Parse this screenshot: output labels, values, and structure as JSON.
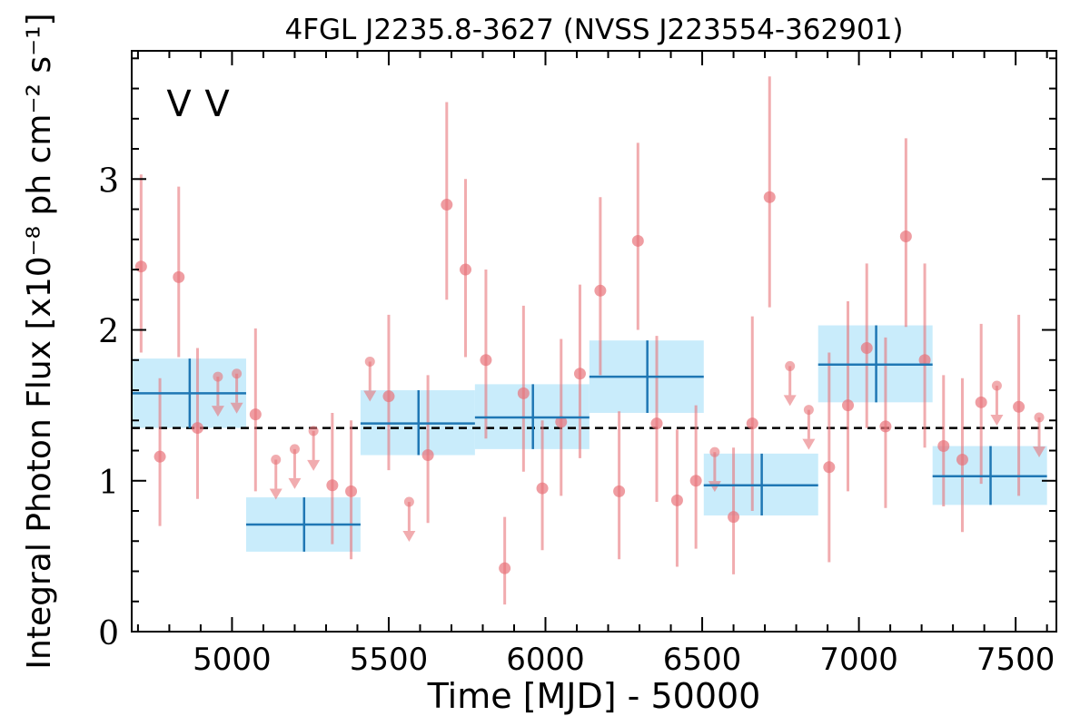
{
  "chart_data": {
    "type": "scatter",
    "title": "4FGL J2235.8-3627 (NVSS J223554-362901)",
    "xlabel": "Time [MJD] - 50000",
    "ylabel": "Integral Photon Flux [x10⁻⁸ ph cm⁻² s⁻¹]",
    "variability_flags": [
      "V",
      "V"
    ],
    "xlim": [
      4680,
      7630
    ],
    "ylim": [
      0,
      3.85
    ],
    "x_ticks": [
      5000,
      5500,
      6000,
      6500,
      7000,
      7500
    ],
    "y_ticks": [
      0,
      1,
      2,
      3
    ],
    "mean_flux": 1.35,
    "colors": {
      "short_bins": "#e8747a",
      "long_bins": "#1f77b4",
      "long_bins_band": "#c9ecfb",
      "flag_blue": "#1f77b4",
      "flag_red": "#d62728"
    },
    "series": [
      {
        "points": [
          {
            "x": 4710,
            "y": 2.42,
            "lo": 1.85,
            "hi": 3.03
          },
          {
            "x": 4770,
            "y": 1.16,
            "lo": 0.7,
            "hi": 1.68
          },
          {
            "x": 4830,
            "y": 2.35,
            "lo": 1.82,
            "hi": 2.95
          },
          {
            "x": 4890,
            "y": 1.35,
            "lo": 0.88,
            "hi": 1.88
          },
          {
            "x": 5075,
            "y": 1.44,
            "lo": 0.93,
            "hi": 2.01
          },
          {
            "x": 5320,
            "y": 0.97,
            "lo": 0.58,
            "hi": 1.45
          },
          {
            "x": 5380,
            "y": 0.93,
            "lo": 0.48,
            "hi": 1.4
          },
          {
            "x": 5500,
            "y": 1.56,
            "lo": 1.07,
            "hi": 2.1
          },
          {
            "x": 5625,
            "y": 1.17,
            "lo": 0.72,
            "hi": 1.7
          },
          {
            "x": 5685,
            "y": 2.83,
            "lo": 2.2,
            "hi": 3.51
          },
          {
            "x": 5745,
            "y": 2.4,
            "lo": 1.82,
            "hi": 3.0
          },
          {
            "x": 5810,
            "y": 1.8,
            "lo": 1.28,
            "hi": 2.4
          },
          {
            "x": 5870,
            "y": 0.42,
            "lo": 0.18,
            "hi": 0.76
          },
          {
            "x": 5930,
            "y": 1.58,
            "lo": 1.06,
            "hi": 2.16
          },
          {
            "x": 5990,
            "y": 0.95,
            "lo": 0.54,
            "hi": 1.4
          },
          {
            "x": 6050,
            "y": 1.39,
            "lo": 0.9,
            "hi": 1.94
          },
          {
            "x": 6110,
            "y": 1.71,
            "lo": 1.15,
            "hi": 2.3
          },
          {
            "x": 6175,
            "y": 2.26,
            "lo": 1.7,
            "hi": 2.88
          },
          {
            "x": 6235,
            "y": 0.93,
            "lo": 0.48,
            "hi": 1.46
          },
          {
            "x": 6295,
            "y": 2.59,
            "lo": 2.0,
            "hi": 3.24
          },
          {
            "x": 6355,
            "y": 1.38,
            "lo": 0.86,
            "hi": 1.96
          },
          {
            "x": 6420,
            "y": 0.87,
            "lo": 0.43,
            "hi": 1.34
          },
          {
            "x": 6480,
            "y": 1.0,
            "lo": 0.55,
            "hi": 1.5
          },
          {
            "x": 6600,
            "y": 0.76,
            "lo": 0.38,
            "hi": 1.22
          },
          {
            "x": 6660,
            "y": 1.38,
            "lo": 0.8,
            "hi": 2.09
          },
          {
            "x": 6715,
            "y": 2.88,
            "lo": 2.15,
            "hi": 3.68
          },
          {
            "x": 6905,
            "y": 1.09,
            "lo": 0.46,
            "hi": 1.85
          },
          {
            "x": 6965,
            "y": 1.5,
            "lo": 0.93,
            "hi": 2.19
          },
          {
            "x": 7025,
            "y": 1.88,
            "lo": 1.35,
            "hi": 2.44
          },
          {
            "x": 7085,
            "y": 1.36,
            "lo": 0.82,
            "hi": 1.95
          },
          {
            "x": 7150,
            "y": 2.62,
            "lo": 2.02,
            "hi": 3.27
          },
          {
            "x": 7210,
            "y": 1.8,
            "lo": 1.22,
            "hi": 2.44
          },
          {
            "x": 7270,
            "y": 1.23,
            "lo": 0.83,
            "hi": 1.7
          },
          {
            "x": 7330,
            "y": 1.14,
            "lo": 0.66,
            "hi": 1.68
          },
          {
            "x": 7390,
            "y": 1.52,
            "lo": 0.98,
            "hi": 2.04
          },
          {
            "x": 7510,
            "y": 1.49,
            "lo": 0.9,
            "hi": 2.1
          }
        ],
        "upper_limits": [
          {
            "x": 4955,
            "y": 1.69
          },
          {
            "x": 5015,
            "y": 1.71
          },
          {
            "x": 5140,
            "y": 1.14
          },
          {
            "x": 5200,
            "y": 1.21
          },
          {
            "x": 5260,
            "y": 1.33
          },
          {
            "x": 5440,
            "y": 1.79
          },
          {
            "x": 5565,
            "y": 0.86
          },
          {
            "x": 6540,
            "y": 1.19
          },
          {
            "x": 6780,
            "y": 1.76
          },
          {
            "x": 6840,
            "y": 1.47
          },
          {
            "x": 7440,
            "y": 1.63
          },
          {
            "x": 7575,
            "y": 1.42
          }
        ]
      },
      {
        "bins": [
          {
            "x0": 4680,
            "x1": 5045,
            "xc": 4865,
            "y": 1.58,
            "lo": 1.35,
            "hi": 1.81
          },
          {
            "x0": 5045,
            "x1": 5410,
            "xc": 5230,
            "y": 0.71,
            "lo": 0.53,
            "hi": 0.89
          },
          {
            "x0": 5410,
            "x1": 5775,
            "xc": 5595,
            "y": 1.38,
            "lo": 1.17,
            "hi": 1.6
          },
          {
            "x0": 5775,
            "x1": 6140,
            "xc": 5960,
            "y": 1.42,
            "lo": 1.21,
            "hi": 1.64
          },
          {
            "x0": 6140,
            "x1": 6505,
            "xc": 6325,
            "y": 1.69,
            "lo": 1.45,
            "hi": 1.93
          },
          {
            "x0": 6505,
            "x1": 6870,
            "xc": 6690,
            "y": 0.97,
            "lo": 0.77,
            "hi": 1.18
          },
          {
            "x0": 6870,
            "x1": 7235,
            "xc": 7055,
            "y": 1.77,
            "lo": 1.52,
            "hi": 2.03
          },
          {
            "x0": 7235,
            "x1": 7600,
            "xc": 7420,
            "y": 1.03,
            "lo": 0.84,
            "hi": 1.23
          }
        ]
      }
    ]
  }
}
